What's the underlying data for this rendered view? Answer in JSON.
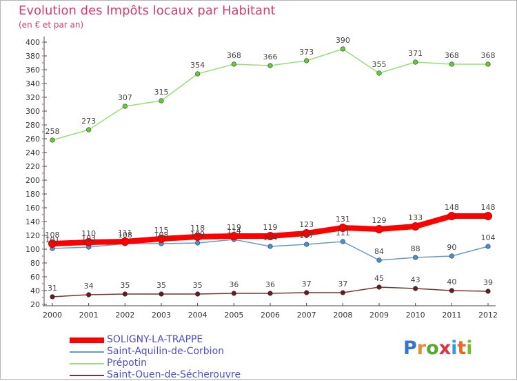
{
  "header": {
    "title": "Evolution des Impôts locaux par Habitant",
    "subtitle": "(en € et par an)"
  },
  "logo": {
    "text": "Proxiti"
  },
  "chart_data": {
    "type": "line",
    "title": "Evolution des Impôts locaux par Habitant",
    "subtitle": "(en € et par an)",
    "xlabel": "",
    "ylabel": "",
    "x": [
      2000,
      2001,
      2002,
      2003,
      2004,
      2005,
      2006,
      2007,
      2008,
      2009,
      2010,
      2011,
      2012
    ],
    "ylim": [
      20,
      400
    ],
    "yticks": [
      20,
      40,
      60,
      80,
      100,
      120,
      140,
      160,
      180,
      200,
      220,
      240,
      260,
      280,
      300,
      320,
      340,
      360,
      380,
      400
    ],
    "grid": false,
    "legend_position": "bottom-left",
    "series": [
      {
        "name": "SOLIGNY-LA-TRAPPE",
        "color": "#ff0000",
        "values": [
          108,
          110,
          111,
          115,
          118,
          119,
          119,
          123,
          131,
          129,
          133,
          148,
          148
        ]
      },
      {
        "name": "Saint-Aquilin-de-Corbion",
        "color": "#6699cc",
        "values": [
          101,
          103,
          108,
          108,
          109,
          114,
          104,
          107,
          111,
          84,
          88,
          90,
          104
        ]
      },
      {
        "name": "Prépotin",
        "color": "#99dd77",
        "values": [
          258,
          273,
          307,
          315,
          354,
          368,
          366,
          373,
          390,
          355,
          371,
          368,
          368
        ]
      },
      {
        "name": "Saint-Ouen-de-Sécherouvre",
        "color": "#773333",
        "values": [
          31,
          34,
          35,
          35,
          35,
          36,
          36,
          37,
          37,
          45,
          43,
          40,
          39
        ]
      }
    ]
  }
}
